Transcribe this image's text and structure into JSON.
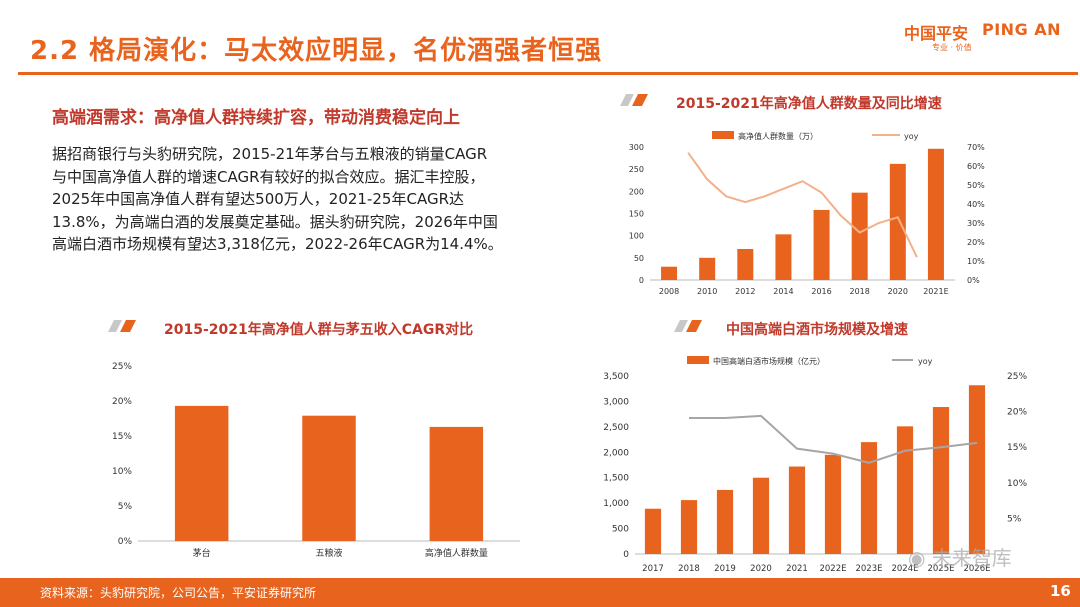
{
  "header": {
    "title": "2.2 格局演化：马太效应明显，名优酒强者恒强",
    "logo_cn": "中国平安",
    "logo_en": "PING AN",
    "logo_tagline": "专业 · 价值"
  },
  "left": {
    "subheading": "高端酒需求：高净值人群持续扩容，带动消费稳定向上",
    "body_lines": [
      "据招商银行与头豹研究院，2015-21年茅台与五粮液的销量CAGR",
      "与中国高净值人群的增速CAGR有较好的拟合效应。据汇丰控股，",
      "2025年中国高净值人群有望达500万人，2021-25年CAGR达",
      "13.8%，为高端白酒的发展奠定基础。据头豹研究院，2026年中国",
      "高端白酒市场规模有望达3,318亿元，2022-26年CAGR为14.4%。"
    ]
  },
  "chart_titles": {
    "hnw": "2015-2021年高净值人群数量及同比增速",
    "cagr": "2015-2021年高净值人群与茅五收入CAGR对比",
    "market": "中国高端白酒市场规模及增速"
  },
  "chart_data": [
    {
      "type": "bar",
      "title": "2015-2021年高净值人群数量及同比增速",
      "categories": [
        "2008",
        "2010",
        "2012",
        "2014",
        "2016",
        "2018",
        "2020",
        "2021E"
      ],
      "series": [
        {
          "name": "高净值人群数量（万）",
          "type": "bar",
          "axis": "left",
          "values": [
            30,
            50,
            70,
            103,
            158,
            197,
            262,
            296
          ]
        },
        {
          "name": "yoy",
          "type": "line",
          "axis": "right",
          "points": [
            {
              "x": 2009,
              "y": 67
            },
            {
              "x": 2010,
              "y": 53
            },
            {
              "x": 2011,
              "y": 44
            },
            {
              "x": 2012,
              "y": 41
            },
            {
              "x": 2013,
              "y": 44
            },
            {
              "x": 2014,
              "y": 48
            },
            {
              "x": 2015,
              "y": 52
            },
            {
              "x": 2016,
              "y": 46
            },
            {
              "x": 2017,
              "y": 34
            },
            {
              "x": 2018,
              "y": 25
            },
            {
              "x": 2019,
              "y": 30
            },
            {
              "x": 2020,
              "y": 33
            },
            {
              "x": 2021,
              "y": 12
            }
          ]
        }
      ],
      "ylim_left": [
        0,
        300
      ],
      "yticks_left": [
        0,
        50,
        100,
        150,
        200,
        250,
        300
      ],
      "ylim_right": [
        0,
        70
      ],
      "yticks_right_labels": [
        "0%",
        "10%",
        "20%",
        "30%",
        "40%",
        "50%",
        "60%",
        "70%"
      ],
      "legend": [
        "高净值人群数量（万）",
        "yoy"
      ]
    },
    {
      "type": "bar",
      "title": "2015-2021年高净值人群与茅五收入CAGR对比",
      "categories": [
        "茅台",
        "五粮液",
        "高净值人群数量"
      ],
      "values": [
        19.3,
        17.9,
        16.3
      ],
      "ylim": [
        0,
        25
      ],
      "yticks_labels": [
        "0%",
        "5%",
        "10%",
        "15%",
        "20%",
        "25%"
      ]
    },
    {
      "type": "bar",
      "title": "中国高端白酒市场规模及增速",
      "categories": [
        "2017",
        "2018",
        "2019",
        "2020",
        "2021",
        "2022E",
        "2023E",
        "2024E",
        "2025E",
        "2026E"
      ],
      "series": [
        {
          "name": "中国高端白酒市场规模（亿元）",
          "type": "bar",
          "axis": "left",
          "values": [
            890,
            1060,
            1260,
            1500,
            1720,
            1950,
            2200,
            2510,
            2890,
            3318
          ]
        },
        {
          "name": "yoy",
          "type": "line",
          "axis": "right",
          "points": [
            {
              "x": 2018,
              "y": 19.1
            },
            {
              "x": 2019,
              "y": 19.1
            },
            {
              "x": 2020,
              "y": 19.4
            },
            {
              "x": 2021,
              "y": 14.8
            },
            {
              "x": 2022,
              "y": 14.1
            },
            {
              "x": 2023,
              "y": 12.8
            },
            {
              "x": 2024,
              "y": 14.5
            },
            {
              "x": 2025,
              "y": 15.0
            },
            {
              "x": 2026,
              "y": 15.6
            }
          ]
        }
      ],
      "ylim_left": [
        0,
        3500
      ],
      "yticks_left_labels": [
        "0",
        "500",
        "1,000",
        "1,500",
        "2,000",
        "2,500",
        "3,000",
        "3,500"
      ],
      "ylim_right": [
        0,
        25
      ],
      "yticks_right_labels": [
        "5%",
        "10%",
        "15%",
        "20%",
        "25%"
      ],
      "legend": [
        "中国高端白酒市场规模（亿元）",
        "yoy"
      ]
    }
  ],
  "footer": {
    "source": "资料来源：头豹研究院，公司公告，平安证券研究所",
    "page_number": "16",
    "watermark": "未来智库"
  },
  "colors": {
    "accent": "#e8641e",
    "title_red": "#c0392b",
    "bar": "#e8641e",
    "line1": "#f3b089",
    "line2": "#a6a6a6"
  }
}
